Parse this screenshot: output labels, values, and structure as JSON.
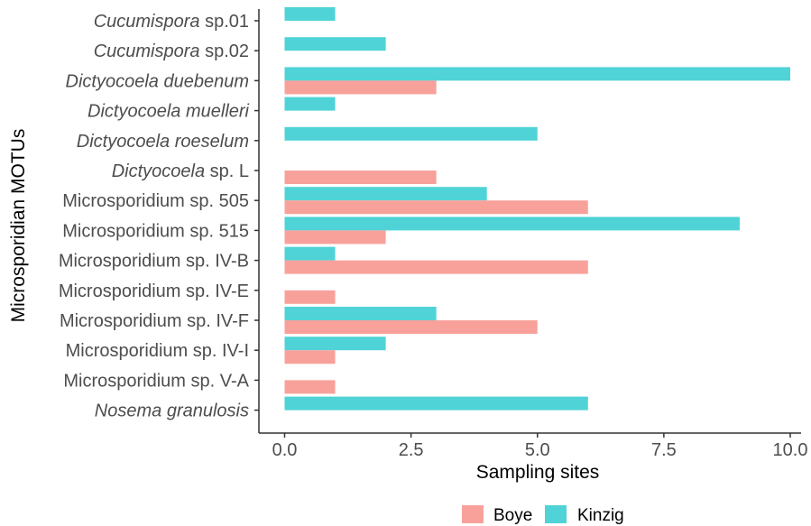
{
  "chart_data": {
    "type": "bar",
    "orientation": "horizontal",
    "categories": [
      {
        "label": "Cucumispora sp.01",
        "italic": "Cucumispora",
        "rest": " sp.01"
      },
      {
        "label": "Cucumispora sp.02",
        "italic": "Cucumispora",
        "rest": " sp.02"
      },
      {
        "label": "Dictyocoela duebenum",
        "italic": "Dictyocoela duebenum",
        "rest": ""
      },
      {
        "label": "Dictyocoela muelleri",
        "italic": "Dictyocoela muelleri",
        "rest": ""
      },
      {
        "label": "Dictyocoela roeselum",
        "italic": "Dictyocoela roeselum",
        "rest": ""
      },
      {
        "label": "Dictyocoela sp. L",
        "italic": "Dictyocoela",
        "rest": " sp. L"
      },
      {
        "label": "Microsporidium sp. 505",
        "italic": "",
        "rest": "Microsporidium sp. 505"
      },
      {
        "label": "Microsporidium sp. 515",
        "italic": "",
        "rest": "Microsporidium sp. 515"
      },
      {
        "label": "Microsporidium sp. IV-B",
        "italic": "",
        "rest": "Microsporidium sp. IV-B"
      },
      {
        "label": "Microsporidium sp. IV-E",
        "italic": "",
        "rest": "Microsporidium sp. IV-E"
      },
      {
        "label": "Microsporidium sp. IV-F",
        "italic": "",
        "rest": "Microsporidium sp. IV-F"
      },
      {
        "label": "Microsporidium sp. IV-I",
        "italic": "",
        "rest": "Microsporidium sp. IV-I"
      },
      {
        "label": "Microsporidium sp. V-A",
        "italic": "",
        "rest": "Microsporidium sp. V-A"
      },
      {
        "label": "Nosema granulosis",
        "italic": "Nosema granulosis",
        "rest": ""
      }
    ],
    "series": [
      {
        "name": "Kinzig",
        "color": "#4fd3d6",
        "values": [
          1,
          2,
          10,
          1,
          5,
          0,
          4,
          9,
          1,
          0,
          3,
          2,
          0,
          6
        ]
      },
      {
        "name": "Boye",
        "color": "#f8a19b",
        "values": [
          0,
          0,
          3,
          0,
          0,
          3,
          6,
          2,
          6,
          1,
          5,
          1,
          1,
          0
        ]
      }
    ],
    "xlabel": "Sampling sites",
    "ylabel": "Microsporidian MOTUs",
    "xlim": [
      0,
      10
    ],
    "xticks": [
      "0.0",
      "2.5",
      "5.0",
      "7.5",
      "10.0"
    ],
    "xtick_values": [
      0,
      2.5,
      5,
      7.5,
      10
    ],
    "grid": false,
    "legend_position": "bottom",
    "legend": [
      {
        "name": "Boye",
        "color": "#f8a19b"
      },
      {
        "name": "Kinzig",
        "color": "#4fd3d6"
      }
    ]
  }
}
